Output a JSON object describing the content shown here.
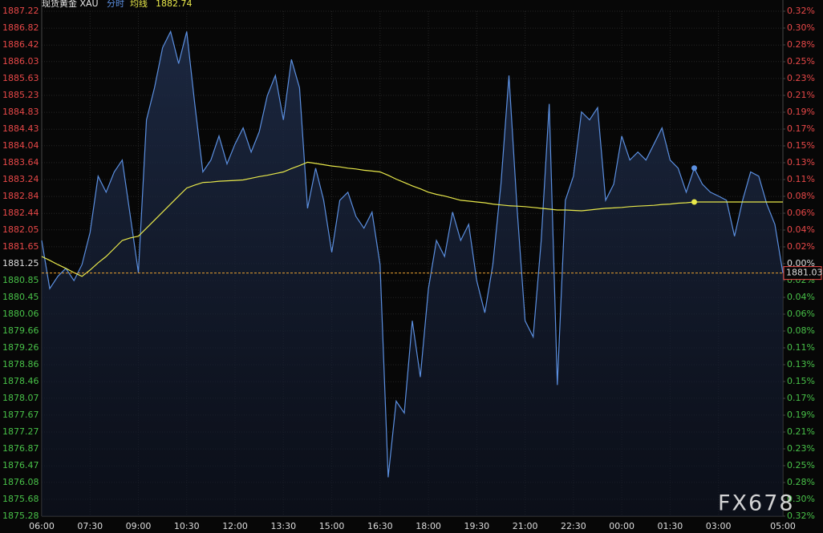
{
  "chart_data": {
    "type": "line",
    "title": "现货黄金 XAU",
    "average_value": "1882.74",
    "watermark": "FX678",
    "categories": [
      "06:00",
      null,
      null,
      null,
      null,
      null,
      "07:30",
      null,
      null,
      null,
      null,
      null,
      "09:00",
      null,
      null,
      null,
      null,
      null,
      "10:30",
      null,
      null,
      null,
      null,
      null,
      "12:00",
      null,
      null,
      null,
      null,
      null,
      "13:30",
      null,
      null,
      null,
      null,
      null,
      "15:00",
      null,
      null,
      null,
      null,
      null,
      "16:30",
      null,
      null,
      null,
      null,
      null,
      "18:00",
      null,
      null,
      null,
      null,
      null,
      "19:30",
      null,
      null,
      null,
      null,
      null,
      "21:00",
      null,
      null,
      null,
      null,
      null,
      "22:30",
      null,
      null,
      null,
      null,
      null,
      "00:00",
      null,
      null,
      null,
      null,
      null,
      "01:30",
      null,
      null,
      null,
      null,
      null,
      "03:00",
      null,
      null,
      null,
      null,
      null,
      null,
      null,
      "05:00"
    ],
    "series": [
      {
        "name": "分时",
        "color": "#5b8fe0",
        "values": [
          1881.8,
          1880.66,
          1880.95,
          1881.14,
          1880.85,
          1881.23,
          1881.99,
          1883.32,
          1882.94,
          1883.42,
          1883.7,
          1882.37,
          1881.04,
          1884.65,
          1885.41,
          1886.36,
          1886.74,
          1885.98,
          1886.74,
          1885.03,
          1883.42,
          1883.7,
          1884.27,
          1883.61,
          1884.08,
          1884.46,
          1883.89,
          1884.37,
          1885.22,
          1885.7,
          1884.65,
          1886.08,
          1885.41,
          1882.56,
          1883.51,
          1882.75,
          1881.52,
          1882.75,
          1882.94,
          1882.37,
          1882.09,
          1882.47,
          1881.23,
          1876.2,
          1878.0,
          1877.72,
          1879.9,
          1878.57,
          1880.66,
          1881.8,
          1881.42,
          1882.47,
          1881.8,
          1882.18,
          1880.85,
          1880.09,
          1881.23,
          1883.13,
          1885.7,
          1882.56,
          1879.9,
          1879.52,
          1881.8,
          1885.03,
          1878.38,
          1882.75,
          1883.32,
          1884.84,
          1884.65,
          1884.94,
          1882.75,
          1883.13,
          1884.27,
          1883.7,
          1883.89,
          1883.7,
          1884.08,
          1884.46,
          1883.7,
          1883.51,
          1882.94,
          1883.51,
          1883.13,
          1882.94,
          1882.85,
          1882.75,
          1881.9,
          1882.75,
          1883.42,
          1883.32,
          1882.66,
          1882.18,
          1881.03
        ]
      },
      {
        "name": "均线",
        "color": "#e8e84a",
        "values": [
          1881.42,
          1881.33,
          1881.23,
          1881.14,
          1881.04,
          1880.95,
          1881.1,
          1881.27,
          1881.42,
          1881.61,
          1881.8,
          1881.86,
          1881.9,
          1882.09,
          1882.28,
          1882.47,
          1882.66,
          1882.85,
          1883.04,
          1883.11,
          1883.17,
          1883.18,
          1883.2,
          1883.21,
          1883.22,
          1883.23,
          1883.27,
          1883.31,
          1883.34,
          1883.38,
          1883.42,
          1883.5,
          1883.57,
          1883.65,
          1883.62,
          1883.59,
          1883.56,
          1883.54,
          1883.51,
          1883.49,
          1883.46,
          1883.44,
          1883.42,
          1883.34,
          1883.25,
          1883.17,
          1883.09,
          1883.02,
          1882.94,
          1882.89,
          1882.85,
          1882.8,
          1882.75,
          1882.73,
          1882.71,
          1882.69,
          1882.66,
          1882.64,
          1882.62,
          1882.61,
          1882.6,
          1882.58,
          1882.56,
          1882.54,
          1882.52,
          1882.52,
          1882.51,
          1882.5,
          1882.52,
          1882.54,
          1882.56,
          1882.57,
          1882.58,
          1882.6,
          1882.61,
          1882.62,
          1882.63,
          1882.65,
          1882.66,
          1882.68,
          1882.69,
          1882.71,
          1882.71,
          1882.71,
          1882.71,
          1882.71,
          1882.71,
          1882.71,
          1882.71,
          1882.71,
          1882.71,
          1882.71,
          1882.71
        ]
      }
    ],
    "cursor_index": 81,
    "last_price": 1881.03,
    "last_price_color": "#e8a030",
    "base_price": 1881.25,
    "up_color": "#e84848",
    "down_color": "#48c048",
    "flat_color": "#dddddd",
    "ylim": [
      1875.28,
      1887.22
    ],
    "yticks": [
      1887.22,
      1886.82,
      1886.42,
      1886.03,
      1885.63,
      1885.23,
      1884.83,
      1884.43,
      1884.04,
      1883.64,
      1883.24,
      1882.84,
      1882.44,
      1882.05,
      1881.65,
      1881.25,
      1880.85,
      1880.45,
      1880.06,
      1879.66,
      1879.26,
      1878.86,
      1878.46,
      1878.07,
      1877.67,
      1877.27,
      1876.87,
      1876.47,
      1876.08,
      1875.68,
      1875.28
    ],
    "y2lim": [
      -0.318,
      0.318
    ],
    "y2ticks": [
      {
        "value": 0.318,
        "label": "0.32%"
      },
      {
        "value": 0.2968,
        "label": "0.30%"
      },
      {
        "value": 0.2756,
        "label": "0.28%"
      },
      {
        "value": 0.2544,
        "label": "0.25%"
      },
      {
        "value": 0.2332,
        "label": "0.23%"
      },
      {
        "value": 0.212,
        "label": "0.21%"
      },
      {
        "value": 0.1908,
        "label": "0.19%"
      },
      {
        "value": 0.1696,
        "label": "0.17%"
      },
      {
        "value": 0.1484,
        "label": "0.15%"
      },
      {
        "value": 0.1272,
        "label": "0.13%"
      },
      {
        "value": 0.106,
        "label": "0.11%"
      },
      {
        "value": 0.0848,
        "label": "0.08%"
      },
      {
        "value": 0.0636,
        "label": "0.06%"
      },
      {
        "value": 0.0424,
        "label": "0.04%"
      },
      {
        "value": 0.0212,
        "label": "0.02%"
      },
      {
        "value": 0,
        "label": "0.00%"
      },
      {
        "value": -0.0212,
        "label": "0.02%"
      },
      {
        "value": -0.0424,
        "label": "0.04%"
      },
      {
        "value": -0.0636,
        "label": "0.06%"
      },
      {
        "value": -0.0848,
        "label": "0.08%"
      },
      {
        "value": -0.106,
        "label": "0.11%"
      },
      {
        "value": -0.1272,
        "label": "0.13%"
      },
      {
        "value": -0.1484,
        "label": "0.15%"
      },
      {
        "value": -0.1696,
        "label": "0.17%"
      },
      {
        "value": -0.1908,
        "label": "0.19%"
      },
      {
        "value": -0.212,
        "label": "0.21%"
      },
      {
        "value": -0.2332,
        "label": "0.23%"
      },
      {
        "value": -0.2544,
        "label": "0.25%"
      },
      {
        "value": -0.2756,
        "label": "0.28%"
      },
      {
        "value": -0.2968,
        "label": "0.30%"
      },
      {
        "value": -0.318,
        "label": "0.32%"
      }
    ],
    "grid": true
  }
}
